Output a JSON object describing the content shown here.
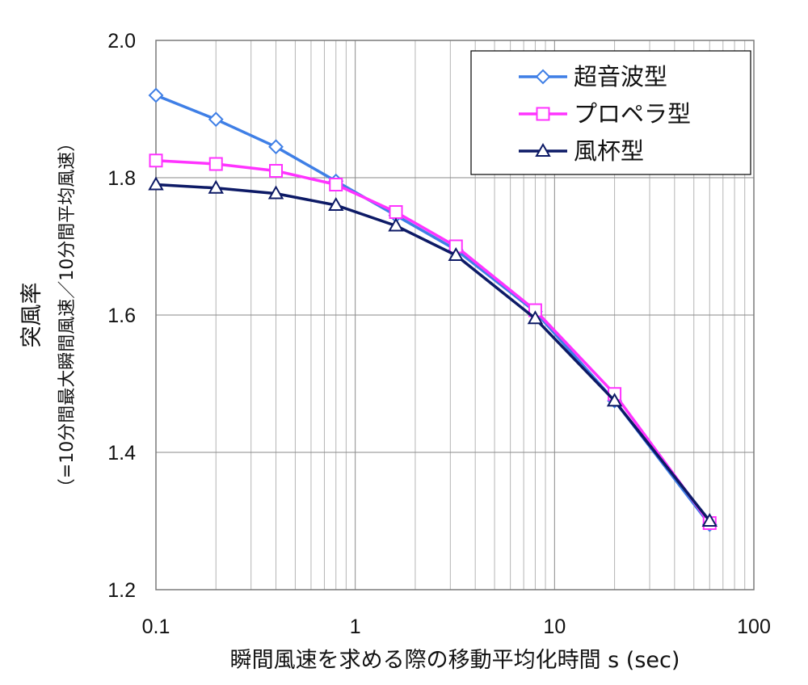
{
  "chart_data": {
    "type": "line",
    "x_scale": "log",
    "xlim": [
      0.1,
      100
    ],
    "ylim": [
      1.2,
      2.0
    ],
    "grid": true,
    "legend_position": "top-right",
    "xlabel": "瞬間風速を求める際の移動平均化時間 s (sec)",
    "ylabel": "突風率",
    "ylabel_sub": "（=10分間最大瞬間風速／10分間平均風速）",
    "x_ticks": [
      "0.1",
      "1",
      "10",
      "100"
    ],
    "y_ticks": [
      "1.2",
      "1.4",
      "1.6",
      "1.8",
      "2.0"
    ],
    "x": [
      0.1,
      0.2,
      0.4,
      0.8,
      1.6,
      3.2,
      8,
      20,
      60
    ],
    "series": [
      {
        "name": "超音波型",
        "marker": "diamond",
        "color": "#3f7fe6",
        "values": [
          1.92,
          1.885,
          1.845,
          1.795,
          1.745,
          1.695,
          1.605,
          1.475,
          1.295
        ]
      },
      {
        "name": "プロペラ型",
        "marker": "square",
        "color": "#ff33ff",
        "values": [
          1.825,
          1.82,
          1.81,
          1.79,
          1.75,
          1.7,
          1.607,
          1.485,
          1.297
        ]
      },
      {
        "name": "風杯型",
        "marker": "triangle",
        "color": "#0d1a66",
        "values": [
          1.79,
          1.785,
          1.777,
          1.76,
          1.73,
          1.687,
          1.595,
          1.475,
          1.3
        ]
      }
    ]
  }
}
